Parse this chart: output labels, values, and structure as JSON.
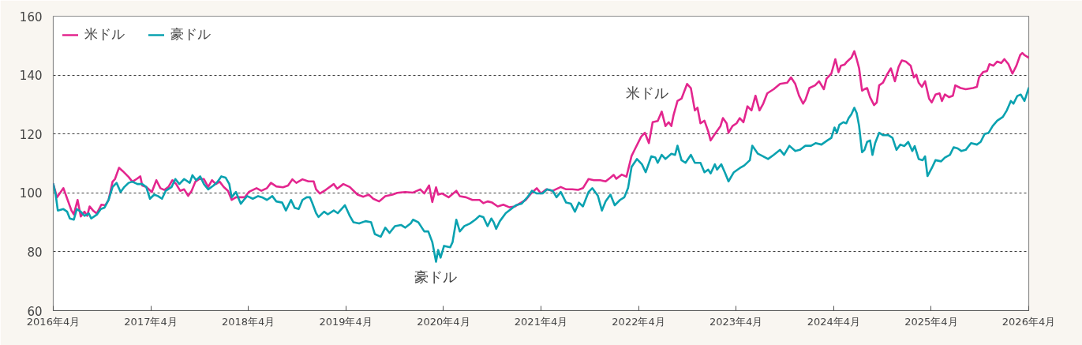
{
  "chart_data": {
    "type": "line",
    "xlim": [
      "2016-04",
      "2026-04"
    ],
    "xticks": [
      {
        "value": "2016-04",
        "label": "2016年4月"
      },
      {
        "value": "2017-04",
        "label": "2017年4月"
      },
      {
        "value": "2018-04",
        "label": "2018年4月"
      },
      {
        "value": "2019-04",
        "label": "2019年4月"
      },
      {
        "value": "2020-04",
        "label": "2020年4月"
      },
      {
        "value": "2021-04",
        "label": "2021年4月"
      },
      {
        "value": "2022-04",
        "label": "2022年4月"
      },
      {
        "value": "2023-04",
        "label": "2023年4月"
      },
      {
        "value": "2024-04",
        "label": "2024年4月"
      },
      {
        "value": "2025-04",
        "label": "2025年4月"
      },
      {
        "value": "2026-04",
        "label": "2026年4月"
      }
    ],
    "ylim": [
      60,
      160
    ],
    "yticks": [
      60,
      80,
      100,
      120,
      140,
      160
    ],
    "grid": "y",
    "legend": "top left",
    "annotations": [
      "米ドル",
      "豪ドル"
    ],
    "series": [
      {
        "name": "米ドル",
        "color": "#e3268e",
        "x": [
          "2016-04-01",
          "2016-04-15",
          "2016-05-09",
          "2016-06-08",
          "2016-06-17",
          "2016-07-01",
          "2016-07-13",
          "2016-07-27",
          "2016-08-06",
          "2016-08-15",
          "2016-08-28",
          "2016-09-11",
          "2016-09-28",
          "2016-10-13",
          "2016-10-25",
          "2016-11-09",
          "2016-11-18",
          "2016-12-03",
          "2016-12-17",
          "2017-01-08",
          "2017-01-22",
          "2017-02-07",
          "2017-02-21",
          "2017-02-28",
          "2017-03-15",
          "2017-04-05",
          "2017-04-22",
          "2017-05-07",
          "2017-05-22",
          "2017-06-06",
          "2017-06-21",
          "2017-07-05",
          "2017-07-20",
          "2017-08-04",
          "2017-08-19",
          "2017-09-01",
          "2017-09-15",
          "2017-09-30",
          "2017-10-17",
          "2017-11-02",
          "2017-11-16",
          "2017-12-01",
          "2017-12-15",
          "2017-12-30",
          "2018-01-15",
          "2018-01-29",
          "2018-02-14",
          "2018-02-28",
          "2018-03-19",
          "2018-04-03",
          "2018-05-02",
          "2018-05-20",
          "2018-06-10",
          "2018-06-25",
          "2018-07-15",
          "2018-08-09",
          "2018-08-28",
          "2018-09-13",
          "2018-09-28",
          "2018-10-21",
          "2018-11-12",
          "2018-12-02",
          "2018-12-11",
          "2018-12-25",
          "2019-01-16",
          "2019-02-15",
          "2019-02-28",
          "2019-03-23",
          "2019-04-16",
          "2019-05-15",
          "2019-06-06",
          "2019-06-26",
          "2019-07-13",
          "2019-08-04",
          "2019-08-27",
          "2019-09-23",
          "2019-10-11",
          "2019-11-10",
          "2019-12-09",
          "2020-01-05",
          "2020-01-20",
          "2020-02-07",
          "2020-02-19",
          "2020-03-04",
          "2020-03-12",
          "2020-03-27",
          "2020-04-20",
          "2020-05-19",
          "2020-06-01",
          "2020-06-24",
          "2020-07-18",
          "2020-08-14",
          "2020-08-28",
          "2020-09-13",
          "2020-09-30",
          "2020-10-21",
          "2020-11-11",
          "2020-12-04",
          "2020-12-25",
          "2021-01-09",
          "2021-02-03",
          "2021-02-23",
          "2021-03-16",
          "2021-04-01",
          "2021-04-21",
          "2021-05-15",
          "2021-06-14",
          "2021-07-04",
          "2021-07-27",
          "2021-08-18",
          "2021-09-05",
          "2021-09-26",
          "2021-10-16",
          "2021-11-09",
          "2021-11-29",
          "2021-12-17",
          "2021-12-29",
          "2022-01-08",
          "2022-01-28",
          "2022-02-15",
          "2022-03-06",
          "2022-03-20",
          "2022-04-11",
          "2022-04-25",
          "2022-05-10",
          "2022-05-24",
          "2022-06-12",
          "2022-06-27",
          "2022-07-11",
          "2022-07-23",
          "2022-08-02",
          "2022-08-10",
          "2022-08-25",
          "2022-09-09",
          "2022-09-30",
          "2022-10-14",
          "2022-10-29",
          "2022-11-08",
          "2022-11-19",
          "2022-12-04",
          "2022-12-18",
          "2022-12-27",
          "2023-01-12",
          "2023-02-02",
          "2023-02-11",
          "2023-02-25",
          "2023-03-04",
          "2023-03-19",
          "2023-04-03",
          "2023-04-15",
          "2023-04-29",
          "2023-05-14",
          "2023-05-29",
          "2023-06-13",
          "2023-06-28",
          "2023-07-12",
          "2023-07-27",
          "2023-08-20",
          "2023-09-13",
          "2023-10-10",
          "2023-10-24",
          "2023-11-09",
          "2023-11-23",
          "2023-12-08",
          "2023-12-17",
          "2024-01-01",
          "2024-01-22",
          "2024-02-06",
          "2024-02-24",
          "2024-03-05",
          "2024-03-23",
          "2024-04-07",
          "2024-04-19",
          "2024-04-28",
          "2024-05-12",
          "2024-05-21",
          "2024-06-06",
          "2024-06-17",
          "2024-06-26",
          "2024-07-05",
          "2024-07-16",
          "2024-07-25",
          "2024-08-04",
          "2024-08-15",
          "2024-08-30",
          "2024-09-09",
          "2024-09-18",
          "2024-10-02",
          "2024-10-17",
          "2024-11-01",
          "2024-11-16",
          "2024-11-30",
          "2024-12-12",
          "2024-12-27",
          "2025-01-14",
          "2025-01-26",
          "2025-02-04",
          "2025-02-13",
          "2025-02-25",
          "2025-03-09",
          "2025-03-24",
          "2025-04-03",
          "2025-04-17",
          "2025-05-02",
          "2025-05-11",
          "2025-05-22",
          "2025-06-07",
          "2025-06-21",
          "2025-06-30",
          "2025-07-20",
          "2025-08-08",
          "2025-09-04",
          "2025-09-19",
          "2025-09-27",
          "2025-10-12",
          "2025-10-27",
          "2025-11-05",
          "2025-11-20",
          "2025-12-04",
          "2025-12-19",
          "2025-12-31",
          "2026-01-15",
          "2026-01-30",
          "2026-02-14",
          "2026-02-28",
          "2026-03-08",
          "2026-03-16",
          "2026-04-01"
        ],
        "values": [
          103,
          98.5,
          101.6,
          94,
          92.7,
          97.6,
          92,
          93.6,
          92.2,
          95.4,
          94,
          93,
          96,
          95.8,
          97.6,
          103.8,
          104.7,
          108.5,
          107.4,
          105.4,
          103.8,
          104.7,
          105.6,
          102.5,
          102,
          100.3,
          104.3,
          101.6,
          101,
          102,
          104.3,
          103,
          100.7,
          101.2,
          99,
          100.7,
          103.8,
          104.7,
          104.7,
          102,
          104.3,
          103,
          103.8,
          102,
          100.7,
          97.6,
          98.5,
          98.5,
          98.5,
          100.3,
          101.6,
          100.7,
          101.6,
          103.4,
          102.2,
          101.9,
          102.5,
          104.6,
          103.4,
          104.6,
          103.9,
          103.9,
          101.2,
          99.8,
          101,
          103,
          101.4,
          103,
          102,
          99.4,
          98.7,
          99.4,
          98,
          97.1,
          98.9,
          99.4,
          100,
          100.3,
          100.1,
          101.2,
          99.8,
          102.5,
          96.9,
          101.9,
          99.4,
          99.8,
          98.5,
          100.7,
          98.9,
          98.5,
          97.6,
          97.6,
          96.5,
          97.1,
          96.7,
          95.4,
          96,
          95.1,
          95.4,
          96.3,
          97.6,
          99.8,
          101.6,
          99.8,
          101.2,
          100.7,
          102,
          101.2,
          101.2,
          101,
          101.6,
          104.7,
          104.3,
          104.3,
          103.9,
          105.2,
          106.1,
          104.8,
          106.2,
          105.5,
          112.5,
          115.1,
          119.1,
          120.4,
          116.9,
          124,
          124.4,
          127.6,
          122.7,
          124,
          122.7,
          126.3,
          131.2,
          132,
          137,
          135.6,
          128,
          128.9,
          123.6,
          124.5,
          120.9,
          117.8,
          120,
          122.7,
          125.4,
          123.6,
          120.4,
          122.7,
          123.6,
          125.4,
          124,
          129.4,
          128,
          133,
          128,
          130.3,
          133.8,
          135.2,
          137,
          137.4,
          139.2,
          137,
          133,
          130.3,
          131.6,
          135.6,
          136.5,
          137.9,
          135.2,
          138.8,
          140.5,
          145.4,
          141,
          143.2,
          143.6,
          144.6,
          145.9,
          148.1,
          145.4,
          142.3,
          134.7,
          135.2,
          135.6,
          132.5,
          129.8,
          130.7,
          136.5,
          137.4,
          140.1,
          142.3,
          137.9,
          142.8,
          145,
          144.6,
          143.2,
          139.2,
          140.1,
          137.4,
          136,
          137.9,
          132,
          130.7,
          133.4,
          133.8,
          131.2,
          133.4,
          132.5,
          133,
          136.5,
          135.6,
          135.2,
          135.6,
          136,
          139.2,
          141,
          141.4,
          143.7,
          143.2,
          144.6,
          144.1,
          145.4,
          143.7,
          140.5,
          143.2,
          146.8,
          147.5,
          146.8,
          145.9
        ]
      },
      {
        "name": "豪ドル",
        "color": "#0aa2b0",
        "x": [
          "2016-04-01",
          "2016-04-10",
          "2016-04-18",
          "2016-05-09",
          "2016-05-23",
          "2016-06-02",
          "2016-06-17",
          "2016-06-28",
          "2016-07-13",
          "2016-07-27",
          "2016-08-12",
          "2016-08-21",
          "2016-09-11",
          "2016-09-26",
          "2016-10-10",
          "2016-10-25",
          "2016-11-09",
          "2016-11-24",
          "2016-12-09",
          "2016-12-23",
          "2017-01-08",
          "2017-01-22",
          "2017-02-10",
          "2017-02-28",
          "2017-03-15",
          "2017-03-29",
          "2017-04-14",
          "2017-04-28",
          "2017-05-13",
          "2017-05-27",
          "2017-06-18",
          "2017-07-02",
          "2017-07-17",
          "2017-08-04",
          "2017-08-25",
          "2017-09-04",
          "2017-09-18",
          "2017-10-03",
          "2017-10-17",
          "2017-11-02",
          "2017-11-22",
          "2017-12-07",
          "2017-12-21",
          "2018-01-06",
          "2018-01-20",
          "2018-01-29",
          "2018-02-14",
          "2018-03-04",
          "2018-03-19",
          "2018-03-28",
          "2018-04-18",
          "2018-05-08",
          "2018-05-23",
          "2018-06-10",
          "2018-06-30",
          "2018-07-15",
          "2018-08-06",
          "2018-08-20",
          "2018-09-08",
          "2018-09-22",
          "2018-10-07",
          "2018-10-21",
          "2018-11-06",
          "2018-11-18",
          "2018-11-26",
          "2018-12-11",
          "2018-12-20",
          "2019-01-10",
          "2019-01-24",
          "2019-02-15",
          "2019-03-02",
          "2019-03-29",
          "2019-04-16",
          "2019-04-30",
          "2019-05-21",
          "2019-06-14",
          "2019-07-05",
          "2019-07-19",
          "2019-08-10",
          "2019-08-27",
          "2019-09-12",
          "2019-10-02",
          "2019-10-25",
          "2019-11-10",
          "2019-11-30",
          "2019-12-09",
          "2019-12-29",
          "2020-01-20",
          "2020-02-04",
          "2020-02-19",
          "2020-03-04",
          "2020-03-12",
          "2020-03-21",
          "2020-04-03",
          "2020-04-26",
          "2020-05-05",
          "2020-05-19",
          "2020-06-01",
          "2020-06-18",
          "2020-07-09",
          "2020-07-29",
          "2020-08-14",
          "2020-08-28",
          "2020-09-13",
          "2020-09-27",
          "2020-10-06",
          "2020-10-15",
          "2020-10-29",
          "2020-11-20",
          "2020-12-10",
          "2020-12-28",
          "2021-01-18",
          "2021-02-09",
          "2021-02-26",
          "2021-03-16",
          "2021-04-07",
          "2021-04-24",
          "2021-05-15",
          "2021-05-29",
          "2021-06-14",
          "2021-07-04",
          "2021-07-22",
          "2021-08-06",
          "2021-08-21",
          "2021-09-05",
          "2021-09-26",
          "2021-10-10",
          "2021-10-31",
          "2021-11-15",
          "2021-11-29",
          "2021-12-17",
          "2022-01-02",
          "2022-01-22",
          "2022-02-07",
          "2022-02-21",
          "2022-03-06",
          "2022-03-26",
          "2022-04-14",
          "2022-04-28",
          "2022-05-19",
          "2022-06-03",
          "2022-06-12",
          "2022-06-27",
          "2022-07-11",
          "2022-08-02",
          "2022-08-16",
          "2022-08-25",
          "2022-09-09",
          "2022-09-24",
          "2022-10-14",
          "2022-10-29",
          "2022-11-19",
          "2022-12-04",
          "2022-12-18",
          "2022-12-27",
          "2023-01-12",
          "2023-01-20",
          "2023-02-05",
          "2023-02-20",
          "2023-03-04",
          "2023-03-24",
          "2023-04-15",
          "2023-05-02",
          "2023-05-23",
          "2023-06-01",
          "2023-06-22",
          "2023-07-12",
          "2023-07-30",
          "2023-08-20",
          "2023-09-13",
          "2023-09-28",
          "2023-10-18",
          "2023-11-09",
          "2023-11-26",
          "2023-12-17",
          "2024-01-07",
          "2024-01-24",
          "2024-02-15",
          "2024-03-08",
          "2024-03-23",
          "2024-04-04",
          "2024-04-13",
          "2024-04-22",
          "2024-05-07",
          "2024-05-18",
          "2024-05-27",
          "2024-06-06",
          "2024-06-17",
          "2024-06-26",
          "2024-07-05",
          "2024-07-16",
          "2024-07-25",
          "2024-08-04",
          "2024-08-15",
          "2024-08-24",
          "2024-09-03",
          "2024-09-18",
          "2024-10-02",
          "2024-10-22",
          "2024-11-07",
          "2024-11-22",
          "2024-12-06",
          "2024-12-21",
          "2025-01-05",
          "2025-01-20",
          "2025-01-29",
          "2025-02-13",
          "2025-02-28",
          "2025-03-09",
          "2025-03-18",
          "2025-04-03",
          "2025-04-17",
          "2025-05-08",
          "2025-05-22",
          "2025-06-10",
          "2025-06-24",
          "2025-07-09",
          "2025-07-23",
          "2025-08-08",
          "2025-08-28",
          "2025-09-19",
          "2025-10-03",
          "2025-10-18",
          "2025-11-02",
          "2025-11-17",
          "2025-12-04",
          "2025-12-25",
          "2026-01-09",
          "2026-01-24",
          "2026-02-03",
          "2026-02-17",
          "2026-03-02",
          "2026-03-16",
          "2026-04-01"
        ],
        "values": [
          103,
          99.4,
          94,
          94.5,
          93.6,
          91.3,
          90.9,
          94.5,
          93.6,
          92.2,
          93,
          91.3,
          92.6,
          94.5,
          95,
          97.6,
          102,
          103.4,
          100.3,
          102,
          103.4,
          103.8,
          103,
          103,
          102,
          98,
          99.4,
          98.9,
          98,
          100.7,
          102,
          104.7,
          103,
          104.7,
          103.4,
          106,
          104.3,
          105.6,
          103,
          101.2,
          102.5,
          103.8,
          105.6,
          105.2,
          103,
          98.5,
          100.3,
          96.3,
          98,
          98.9,
          98,
          98.9,
          98.5,
          97.6,
          98.9,
          97.1,
          96.7,
          94,
          97.6,
          94.9,
          94.5,
          97.6,
          98.5,
          98.5,
          96.7,
          93.1,
          91.8,
          93.6,
          92.7,
          94,
          93.1,
          95.8,
          92.2,
          90,
          89.6,
          90.4,
          90,
          86,
          85.1,
          88.2,
          86.4,
          88.7,
          89.1,
          88.2,
          89.6,
          90.9,
          90,
          86.9,
          86.9,
          83.3,
          76.6,
          80.6,
          78,
          82,
          81.5,
          83.3,
          90.9,
          86.9,
          88.7,
          89.6,
          90.9,
          92.2,
          91.8,
          88.7,
          91.3,
          90,
          87.8,
          90.4,
          93.1,
          94.5,
          95.8,
          96.3,
          98.5,
          100.7,
          99.8,
          99.8,
          101.2,
          100.7,
          98.5,
          100.3,
          96.7,
          96.3,
          93.6,
          96.7,
          95.4,
          100.3,
          101.6,
          99,
          94,
          97.1,
          99.4,
          95.8,
          97.6,
          98.5,
          101.7,
          108.8,
          111.5,
          109.7,
          107,
          112.4,
          112,
          110.2,
          112.9,
          111.5,
          113.3,
          112.9,
          116,
          111.1,
          110.2,
          112.9,
          110.2,
          110.2,
          107,
          107.9,
          106.6,
          109.7,
          107.9,
          109.7,
          106.6,
          103.9,
          107,
          108.4,
          109.3,
          111.1,
          116,
          113.3,
          112.4,
          111.5,
          112.9,
          114.6,
          112.9,
          116,
          114.2,
          114.6,
          116,
          116,
          116.9,
          116.4,
          117.8,
          118.7,
          122.2,
          120.4,
          123.1,
          124,
          123.6,
          125.4,
          126.7,
          128.9,
          127.1,
          122.7,
          113.8,
          114.6,
          117.3,
          117.8,
          112.9,
          116.9,
          120.4,
          119.6,
          119.6,
          118.7,
          114.6,
          116.4,
          115.9,
          117.3,
          114.2,
          115.9,
          111.5,
          111.1,
          112.4,
          105.7,
          108.4,
          111.1,
          110.7,
          112,
          112.9,
          115.5,
          115.1,
          114.2,
          114.6,
          116.9,
          116.4,
          117.3,
          120,
          120.4,
          122.7,
          124.5,
          125.8,
          128,
          131.2,
          130.3,
          132.9,
          133.4,
          131.2,
          135.6
        ]
      }
    ]
  }
}
